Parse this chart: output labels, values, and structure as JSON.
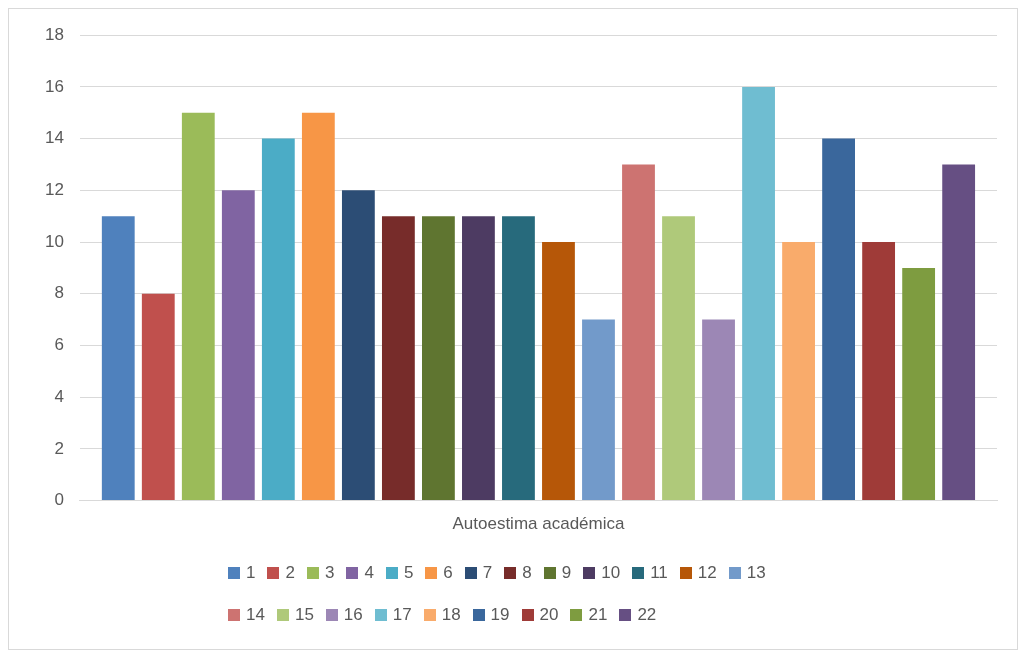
{
  "chart_data": {
    "type": "bar",
    "categories": [
      "Autoestima académica"
    ],
    "series": [
      {
        "name": "1",
        "color": "#4f81bd",
        "values": [
          11
        ]
      },
      {
        "name": "2",
        "color": "#c0504d",
        "values": [
          8
        ]
      },
      {
        "name": "3",
        "color": "#9bbb59",
        "values": [
          15
        ]
      },
      {
        "name": "4",
        "color": "#8064a2",
        "values": [
          12
        ]
      },
      {
        "name": "5",
        "color": "#4bacc6",
        "values": [
          14
        ]
      },
      {
        "name": "6",
        "color": "#f79646",
        "values": [
          15
        ]
      },
      {
        "name": "7",
        "color": "#2c4d75",
        "values": [
          12
        ]
      },
      {
        "name": "8",
        "color": "#772c2a",
        "values": [
          11
        ]
      },
      {
        "name": "9",
        "color": "#5f7530",
        "values": [
          11
        ]
      },
      {
        "name": "10",
        "color": "#4d3b62",
        "values": [
          11
        ]
      },
      {
        "name": "11",
        "color": "#276a7c",
        "values": [
          11
        ]
      },
      {
        "name": "12",
        "color": "#b65708",
        "values": [
          10
        ]
      },
      {
        "name": "13",
        "color": "#729aca",
        "values": [
          7
        ]
      },
      {
        "name": "14",
        "color": "#cd7371",
        "values": [
          13
        ]
      },
      {
        "name": "15",
        "color": "#afc97a",
        "values": [
          11
        ]
      },
      {
        "name": "16",
        "color": "#9c87b5",
        "values": [
          7
        ]
      },
      {
        "name": "17",
        "color": "#6fbdd1",
        "values": [
          16
        ]
      },
      {
        "name": "18",
        "color": "#f9ab6b",
        "values": [
          10
        ]
      },
      {
        "name": "19",
        "color": "#3a679c",
        "values": [
          14
        ]
      },
      {
        "name": "20",
        "color": "#9f3b38",
        "values": [
          10
        ]
      },
      {
        "name": "21",
        "color": "#7e9c40",
        "values": [
          9
        ]
      },
      {
        "name": "22",
        "color": "#664f83",
        "values": [
          13
        ]
      }
    ],
    "ylim": [
      0,
      18
    ],
    "yticks": [
      0,
      2,
      4,
      6,
      8,
      10,
      12,
      14,
      16,
      18
    ],
    "grid": "y",
    "legend": "bottom"
  }
}
